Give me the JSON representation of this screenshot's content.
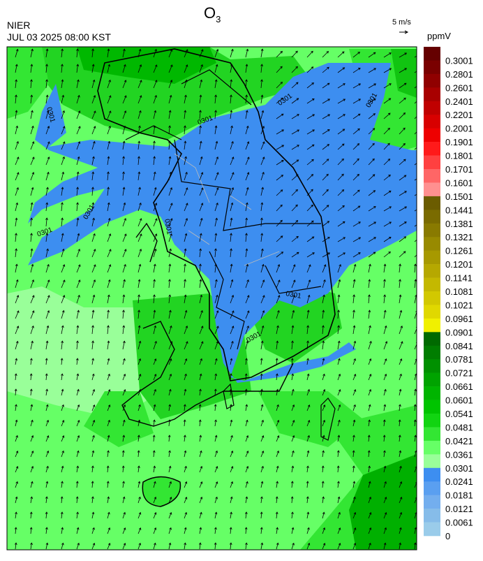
{
  "header": {
    "title": "O",
    "title_sub": "3",
    "agency": "NIER",
    "datetime": "JUL 03 2025 08:00 KST"
  },
  "wind_key": {
    "label": "5 m/s"
  },
  "colorbar": {
    "unit": "ppmV",
    "labels": [
      "0.3001",
      "0.2801",
      "0.2601",
      "0.2401",
      "0.2201",
      "0.2001",
      "0.1901",
      "0.1801",
      "0.1701",
      "0.1601",
      "0.1501",
      "0.1441",
      "0.1381",
      "0.1321",
      "0.1261",
      "0.1201",
      "0.1141",
      "0.1081",
      "0.1021",
      "0.0961",
      "0.0901",
      "0.0841",
      "0.0781",
      "0.0721",
      "0.0661",
      "0.0601",
      "0.0541",
      "0.0481",
      "0.0421",
      "0.0361",
      "0.0301",
      "0.0241",
      "0.0181",
      "0.0121",
      "0.0061",
      "0"
    ],
    "colors": [
      "#650000",
      "#7a0000",
      "#900000",
      "#a80000",
      "#c00000",
      "#d80000",
      "#ee0000",
      "#ff1a1a",
      "#ff4040",
      "#ff6666",
      "#ff9090",
      "#6b5c00",
      "#7a6b00",
      "#897a00",
      "#988a00",
      "#a79900",
      "#b6a800",
      "#c4b800",
      "#d2c800",
      "#e0d800",
      "#f0f000",
      "#006a00",
      "#007d00",
      "#009000",
      "#00a300",
      "#00b400",
      "#00c400",
      "#11d411",
      "#33e633",
      "#66ff66",
      "#99ff99",
      "#3d8ef0",
      "#5a9ff0",
      "#73aeee",
      "#86bce9",
      "#9accea"
    ]
  },
  "contour_labels": [
    "0301",
    "0301",
    "0301",
    "0301",
    "0301",
    "0301",
    "0301",
    "0301",
    "0301"
  ]
}
